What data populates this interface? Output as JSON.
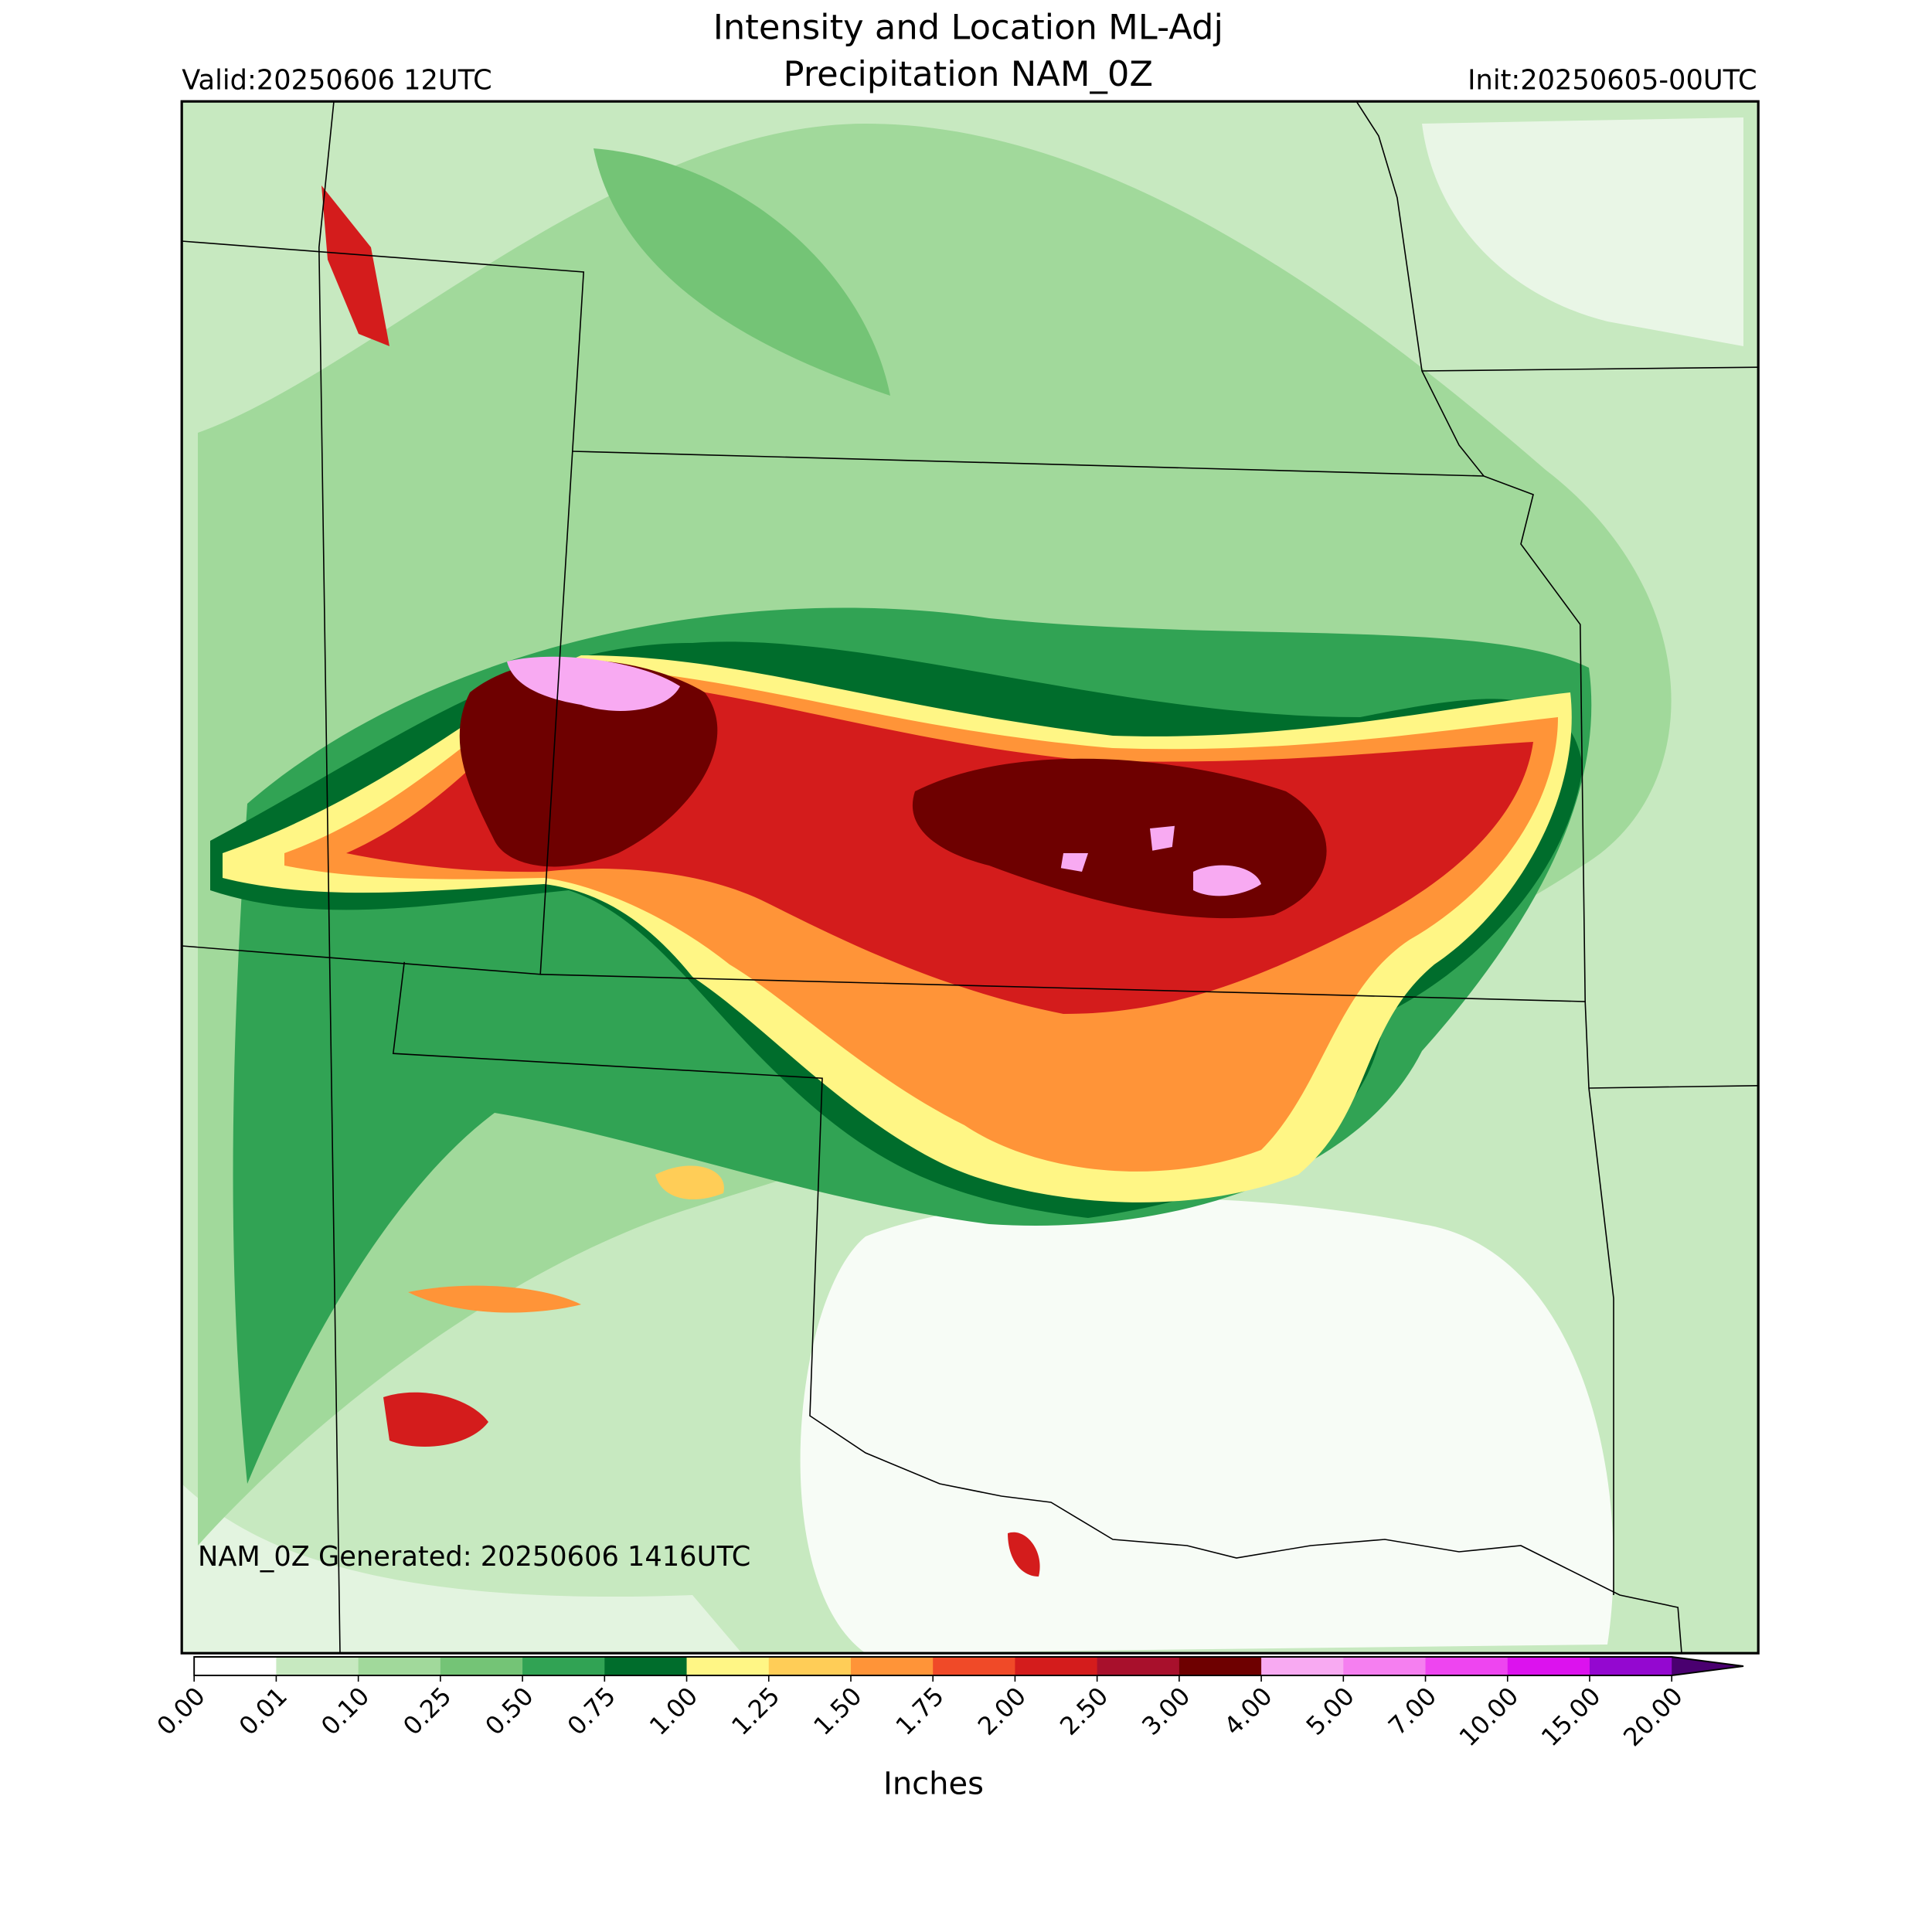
{
  "header": {
    "title_line1": "Intensity and Location ML-Adj",
    "title_line2": "Precipitation NAM_0Z",
    "valid": "Valid:20250606 12UTC",
    "init": "Init:20250605-00UTC"
  },
  "map": {
    "annotation": "NAM_0Z Generated: 20250606 1416UTC"
  },
  "colorbar": {
    "label": "Inches",
    "ticks": [
      {
        "value": 0,
        "label": "0.00"
      },
      {
        "value": 0.01,
        "label": "0.01"
      },
      {
        "value": 0.1,
        "label": "0.10"
      },
      {
        "value": 0.25,
        "label": "0.25"
      },
      {
        "value": 0.5,
        "label": "0.50"
      },
      {
        "value": 0.75,
        "label": "0.75"
      },
      {
        "value": 1,
        "label": "1.00"
      },
      {
        "value": 1.25,
        "label": "1.25"
      },
      {
        "value": 1.5,
        "label": "1.50"
      },
      {
        "value": 1.75,
        "label": "1.75"
      },
      {
        "value": 2,
        "label": "2.00"
      },
      {
        "value": 2.5,
        "label": "2.50"
      },
      {
        "value": 3,
        "label": "3.00"
      },
      {
        "value": 4,
        "label": "4.00"
      },
      {
        "value": 5,
        "label": "5.00"
      },
      {
        "value": 7,
        "label": "7.00"
      },
      {
        "value": 10,
        "label": "10.00"
      },
      {
        "value": 15,
        "label": "15.00"
      },
      {
        "value": 20,
        "label": "20.00"
      }
    ],
    "colors": [
      "#ffffff",
      "#c7e9c0",
      "#a1d99b",
      "#74c476",
      "#31a354",
      "#006d2c",
      "#fff685",
      "#ffcd57",
      "#ff9438",
      "#f04a28",
      "#d41c1c",
      "#a8102c",
      "#6e0000",
      "#f8aaf2",
      "#f57ff0",
      "#ee45f0",
      "#dc12ee",
      "#9408d0"
    ],
    "extend_color": "#4a0070"
  }
}
